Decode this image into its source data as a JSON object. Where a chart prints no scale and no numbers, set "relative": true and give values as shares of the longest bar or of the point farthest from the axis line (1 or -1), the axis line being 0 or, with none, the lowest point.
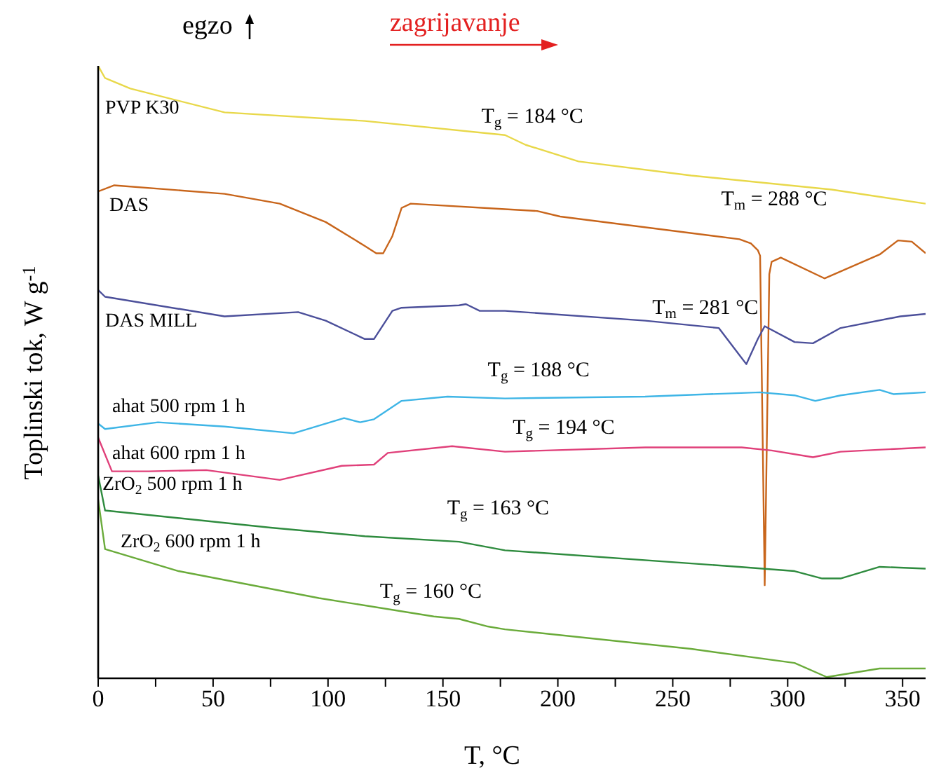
{
  "chart_data": {
    "type": "line",
    "relative": true,
    "xlabel": "T, °C",
    "ylabel": "Toplinski tok, W g$^{-1}$",
    "xlim": [
      0,
      360
    ],
    "xticks": [
      0,
      {
        "value": 25,
        "label": null
      },
      50,
      {
        "value": 75,
        "label": null
      },
      100,
      {
        "value": 125,
        "label": null
      },
      150,
      {
        "value": 175,
        "label": null
      },
      200,
      {
        "value": 225,
        "label": null
      },
      250,
      {
        "value": 275,
        "label": null
      },
      300,
      {
        "value": 325,
        "label": null
      },
      350
    ],
    "marker": "none",
    "line_style": "solid",
    "series": [
      {
        "name": "PVP K30",
        "color": "#e8d84a",
        "x": [
          0,
          3,
          14,
          55,
          116,
          177,
          186,
          209,
          258,
          319,
          360
        ],
        "values": [
          1.0,
          0.98,
          0.963,
          0.924,
          0.91,
          0.887,
          0.871,
          0.844,
          0.821,
          0.798,
          0.775
        ]
      },
      {
        "name": "DAS",
        "color": "#c8651b",
        "x": [
          0,
          7,
          55,
          79,
          99,
          116,
          121,
          124,
          128,
          132,
          136,
          177,
          191,
          201,
          279,
          284,
          287,
          288,
          290,
          292,
          293,
          297,
          316,
          340,
          348,
          354,
          360
        ],
        "values": [
          0.795,
          0.805,
          0.791,
          0.775,
          0.745,
          0.706,
          0.694,
          0.694,
          0.722,
          0.768,
          0.775,
          0.766,
          0.763,
          0.754,
          0.717,
          0.71,
          0.699,
          0.69,
          0.152,
          0.66,
          0.68,
          0.687,
          0.653,
          0.692,
          0.715,
          0.713,
          0.694
        ]
      },
      {
        "name": "DAS MILL",
        "color": "#4b4f9a",
        "x": [
          0,
          3,
          55,
          87,
          99,
          116,
          120,
          128,
          132,
          157,
          160,
          166,
          177,
          238,
          270,
          282,
          287,
          290,
          303,
          311,
          323,
          349,
          360
        ],
        "values": [
          0.634,
          0.623,
          0.591,
          0.598,
          0.584,
          0.554,
          0.554,
          0.6,
          0.605,
          0.609,
          0.611,
          0.6,
          0.6,
          0.584,
          0.572,
          0.513,
          0.554,
          0.575,
          0.549,
          0.547,
          0.572,
          0.591,
          0.595
        ]
      },
      {
        "name": "ahat 500 rpm 1 h",
        "color": "#3eb5e6",
        "x": [
          0,
          3,
          26,
          55,
          85,
          107,
          114,
          120,
          132,
          152,
          177,
          238,
          288,
          303,
          312,
          323,
          340,
          346,
          360
        ],
        "values": [
          0.416,
          0.407,
          0.418,
          0.411,
          0.4,
          0.425,
          0.418,
          0.423,
          0.453,
          0.46,
          0.457,
          0.46,
          0.467,
          0.462,
          0.453,
          0.462,
          0.471,
          0.464,
          0.467
        ]
      },
      {
        "name": "ahat 600 rpm 1 h",
        "color": "#e0407a",
        "x": [
          0,
          6,
          22,
          47,
          79,
          106,
          120,
          126,
          154,
          177,
          238,
          280,
          293,
          311,
          323,
          360
        ],
        "values": [
          0.393,
          0.338,
          0.338,
          0.34,
          0.324,
          0.347,
          0.349,
          0.368,
          0.379,
          0.37,
          0.377,
          0.377,
          0.372,
          0.361,
          0.37,
          0.377
        ]
      },
      {
        "name": "ZrO$_{2}$ 500 rpm 1 h",
        "color": "#2e8b3e",
        "x": [
          0,
          3,
          75,
          116,
          157,
          177,
          279,
          303,
          315,
          323,
          340,
          360
        ],
        "values": [
          0.331,
          0.274,
          0.246,
          0.232,
          0.223,
          0.209,
          0.182,
          0.175,
          0.163,
          0.163,
          0.182,
          0.179
        ]
      },
      {
        "name": "ZrO$_{2}$ 600 rpm 1 h",
        "color": "#6aab3a",
        "x": [
          0,
          3,
          35,
          96,
          146,
          157,
          169,
          177,
          258,
          303,
          317,
          340,
          360
        ],
        "values": [
          0.292,
          0.211,
          0.175,
          0.131,
          0.101,
          0.097,
          0.085,
          0.08,
          0.048,
          0.025,
          0.002,
          0.016,
          0.016
        ]
      }
    ],
    "annotations": [
      {
        "text": "T$_{g}$ = 184 °C",
        "x": 184,
        "y": 0.875
      },
      {
        "text": "T$_{m}$ = 288 °C",
        "x": 288,
        "y": 0.69
      },
      {
        "text": "T$_{m}$ = 281 °C",
        "x": 275,
        "y": 0.565
      },
      {
        "text": "T$_{g}$ = 188 °C",
        "x": 188,
        "y": 0.457
      },
      {
        "text": "T$_{g}$ = 194 °C",
        "x": 194,
        "y": 0.372
      },
      {
        "text": "T$_{g}$ = 163 °C",
        "x": 163,
        "y": 0.222
      },
      {
        "text": "T$_{g}$ = 160 °C",
        "x": 160,
        "y": 0.095
      },
      "egzo",
      "zagrijavanje"
    ]
  }
}
